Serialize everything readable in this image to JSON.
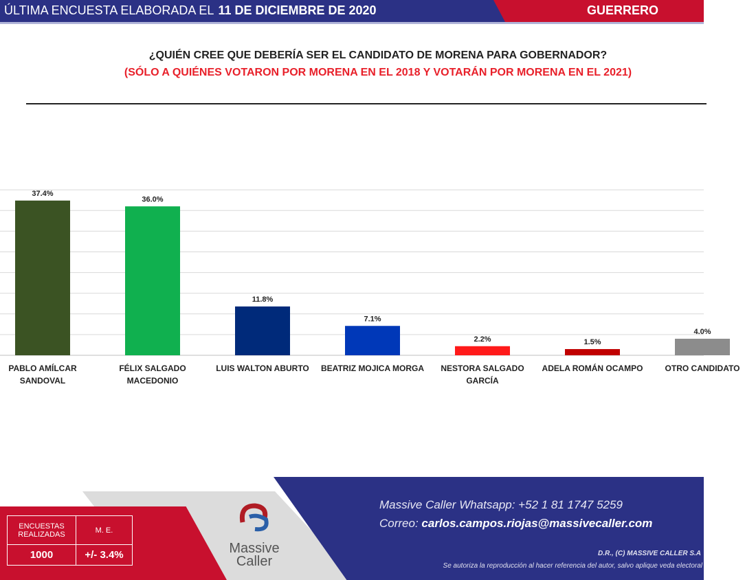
{
  "header": {
    "prefix": "ÚLTIMA ENCUESTA ELABORADA EL",
    "date": "11 DE DICIEMBRE DE 2020",
    "region": "GUERRERO"
  },
  "chart_data": {
    "type": "bar",
    "title": "¿QUIÉN CREE QUE DEBERÍA SER EL CANDIDATO DE MORENA PARA GOBERNADOR?",
    "subtitle": "(SÓLO A QUIÉNES VOTARON POR MORENA EN EL 2018 Y VOTARÁN POR MORENA EN EL 2021)",
    "categories": [
      [
        "PABLO AMÍLCAR",
        "SANDOVAL"
      ],
      [
        "FÉLIX SALGADO",
        "MACEDONIO"
      ],
      [
        "LUIS WALTON ABURTO"
      ],
      [
        "BEATRIZ MOJICA MORGA"
      ],
      [
        "NESTORA SALGADO",
        "GARCÍA"
      ],
      [
        "ADELA ROMÁN OCAMPO"
      ],
      [
        "OTRO CANDIDATO"
      ]
    ],
    "values": [
      37.4,
      36.0,
      11.8,
      7.1,
      2.2,
      1.5,
      4.0
    ],
    "labels": [
      "37.4%",
      "36.0%",
      "11.8%",
      "7.1%",
      "2.2%",
      "1.5%",
      "4.0%"
    ],
    "colors": [
      "#3b5323",
      "#10b04f",
      "#002a7a",
      "#0038b8",
      "#ff1a1a",
      "#c00000",
      "#8c8c8c"
    ],
    "ylim": [
      0,
      40
    ],
    "grid": true,
    "gridstep": 5
  },
  "footer": {
    "surveys_label": "ENCUESTAS REALIZADAS",
    "me_label": "M. E.",
    "surveys": "1000",
    "me": "+/- 3.4%",
    "logo_line1": "Massive",
    "logo_line2": "Caller",
    "whatsapp": "Massive Caller Whatsapp: +52 1 81 1747 5259",
    "email_label": "Correo:",
    "email": "carlos.campos.riojas@massivecaller.com",
    "rights": "D.R., (C) MASSIVE CALLER S.A",
    "authorization": "Se autoriza la reproducción al hacer referencia del autor, salvo aplique veda electoral"
  }
}
